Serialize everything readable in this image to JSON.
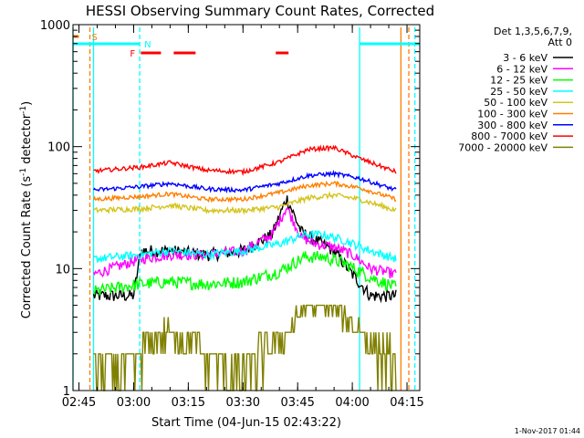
{
  "chart_data": {
    "type": "line",
    "title": "HESSI Observing Summary Count Rates, Corrected",
    "xlabel": "Start Time (04-Jun-15 02:43:22)",
    "ylabel": "Corrected Count Rate (s⁻¹ detector⁻¹)",
    "ylabel_parts": {
      "main": "Corrected Count Rate (s",
      "exp1": "-1",
      "mid": " detector",
      "exp2": "-1",
      "end": ")"
    },
    "y_scale": "log",
    "ylim": [
      1,
      1000
    ],
    "x_range": [
      "02:43:22",
      "04:18:30"
    ],
    "x_ticks": [
      "02:45",
      "03:00",
      "03:15",
      "03:30",
      "03:45",
      "04:00",
      "04:15"
    ],
    "y_ticks": [
      "1",
      "10",
      "100",
      "1000"
    ],
    "legend_header": [
      "Det 1,3,5,6,7,9,",
      "Att 0"
    ],
    "legend_position": "top-right",
    "flag_labels": {
      "saa": "S",
      "night": "N",
      "flare": "F"
    },
    "footer": "1-Nov-2017 01:44",
    "data_interval": [
      "02:49",
      "04:12"
    ],
    "series": [
      {
        "name": "3 - 6 keV",
        "color": "#000000",
        "x": [
          "02:49",
          "03:00",
          "03:02",
          "03:10",
          "03:20",
          "03:30",
          "03:38",
          "03:42",
          "03:46",
          "03:50",
          "03:55",
          "04:00",
          "04:05",
          "04:12"
        ],
        "values": [
          6,
          6,
          14,
          14,
          13,
          14,
          19,
          38,
          20,
          17,
          14,
          9,
          6,
          6
        ]
      },
      {
        "name": "6 - 12 keV",
        "color": "#ff00ff",
        "x": [
          "02:49",
          "03:02",
          "03:10",
          "03:20",
          "03:30",
          "03:38",
          "03:42",
          "03:46",
          "03:50",
          "03:55",
          "04:00",
          "04:05",
          "04:12"
        ],
        "values": [
          9,
          12,
          13,
          13,
          14,
          19,
          32,
          18,
          16,
          15,
          13,
          10,
          9
        ]
      },
      {
        "name": "12 - 25 keV",
        "color": "#00ff00",
        "x": [
          "02:49",
          "03:02",
          "03:10",
          "03:20",
          "03:30",
          "03:40",
          "03:47",
          "03:52",
          "03:58",
          "04:05",
          "04:12"
        ],
        "values": [
          6.5,
          7.5,
          7.8,
          7.5,
          7.8,
          9.5,
          12.5,
          12.5,
          11,
          8.5,
          7
        ]
      },
      {
        "name": "25 - 50 keV",
        "color": "#00ffff",
        "x": [
          "02:49",
          "03:02",
          "03:10",
          "03:20",
          "03:30",
          "03:40",
          "03:47",
          "03:52",
          "03:58",
          "04:05",
          "04:12"
        ],
        "values": [
          12,
          13,
          14,
          13,
          14,
          16,
          19,
          19,
          17,
          14,
          12
        ]
      },
      {
        "name": "50 - 100 keV",
        "color": "#d4c41e",
        "x": [
          "02:49",
          "03:02",
          "03:10",
          "03:20",
          "03:30",
          "03:40",
          "03:48",
          "03:55",
          "04:02",
          "04:12"
        ],
        "values": [
          30,
          31,
          33,
          30,
          30,
          32,
          38,
          40,
          37,
          30
        ]
      },
      {
        "name": "100 - 300 keV",
        "color": "#ff7f00",
        "x": [
          "02:49",
          "03:02",
          "03:10",
          "03:20",
          "03:30",
          "03:40",
          "03:48",
          "03:55",
          "04:02",
          "04:12"
        ],
        "values": [
          37,
          39,
          41,
          37,
          37,
          42,
          48,
          50,
          46,
          37
        ]
      },
      {
        "name": "300 - 800 keV",
        "color": "#0000ff",
        "x": [
          "02:49",
          "03:02",
          "03:10",
          "03:20",
          "03:30",
          "03:40",
          "03:48",
          "03:55",
          "04:02",
          "04:12"
        ],
        "values": [
          44,
          47,
          50,
          45,
          44,
          50,
          58,
          60,
          55,
          44
        ]
      },
      {
        "name": "800 - 7000 keV",
        "color": "#ff0000",
        "x": [
          "02:49",
          "03:02",
          "03:10",
          "03:20",
          "03:30",
          "03:40",
          "03:48",
          "03:55",
          "04:02",
          "04:12"
        ],
        "values": [
          63,
          68,
          74,
          64,
          62,
          75,
          95,
          98,
          80,
          62
        ]
      },
      {
        "name": "7000 - 20000 keV",
        "color": "#808000",
        "x": [
          "02:49",
          "03:00",
          "03:03",
          "03:10",
          "03:15",
          "03:20",
          "03:30",
          "03:36",
          "03:42",
          "03:48",
          "03:55",
          "04:00",
          "04:05",
          "04:12"
        ],
        "values": [
          1.6,
          1.5,
          2.5,
          3,
          2.6,
          1.8,
          1.5,
          2.2,
          3.2,
          5,
          4.7,
          3.6,
          2.4,
          1.6
        ]
      }
    ],
    "flags": {
      "saa_intervals": [
        [
          "02:43:22",
          "02:45:00"
        ]
      ],
      "night_intervals": [
        [
          "02:43:22",
          "03:01:40"
        ],
        [
          "04:02:00",
          "04:18:30"
        ]
      ],
      "flare_intervals": [
        [
          "03:02:00",
          "03:07:30"
        ],
        [
          "03:11:00",
          "03:17:00"
        ],
        [
          "03:39:00",
          "03:42:30"
        ]
      ]
    },
    "vertical_lines": [
      {
        "time": "02:43:22",
        "style": "solid",
        "color": "#00ffff"
      },
      {
        "time": "02:48:00",
        "style": "dashed",
        "color": "#ff7f00"
      },
      {
        "time": "02:49:00",
        "style": "solid",
        "color": "#00ffff"
      },
      {
        "time": "03:01:40",
        "style": "dashed",
        "color": "#00ffff"
      },
      {
        "time": "04:02:00",
        "style": "solid",
        "color": "#00ffff"
      },
      {
        "time": "04:13:20",
        "style": "solid",
        "color": "#ff7f00"
      },
      {
        "time": "04:15:30",
        "style": "dashed",
        "color": "#ff7f00"
      },
      {
        "time": "04:17:10",
        "style": "dashed",
        "color": "#00ffff"
      }
    ],
    "colors": {
      "background": "#ffffff",
      "axes": "#000000"
    }
  }
}
